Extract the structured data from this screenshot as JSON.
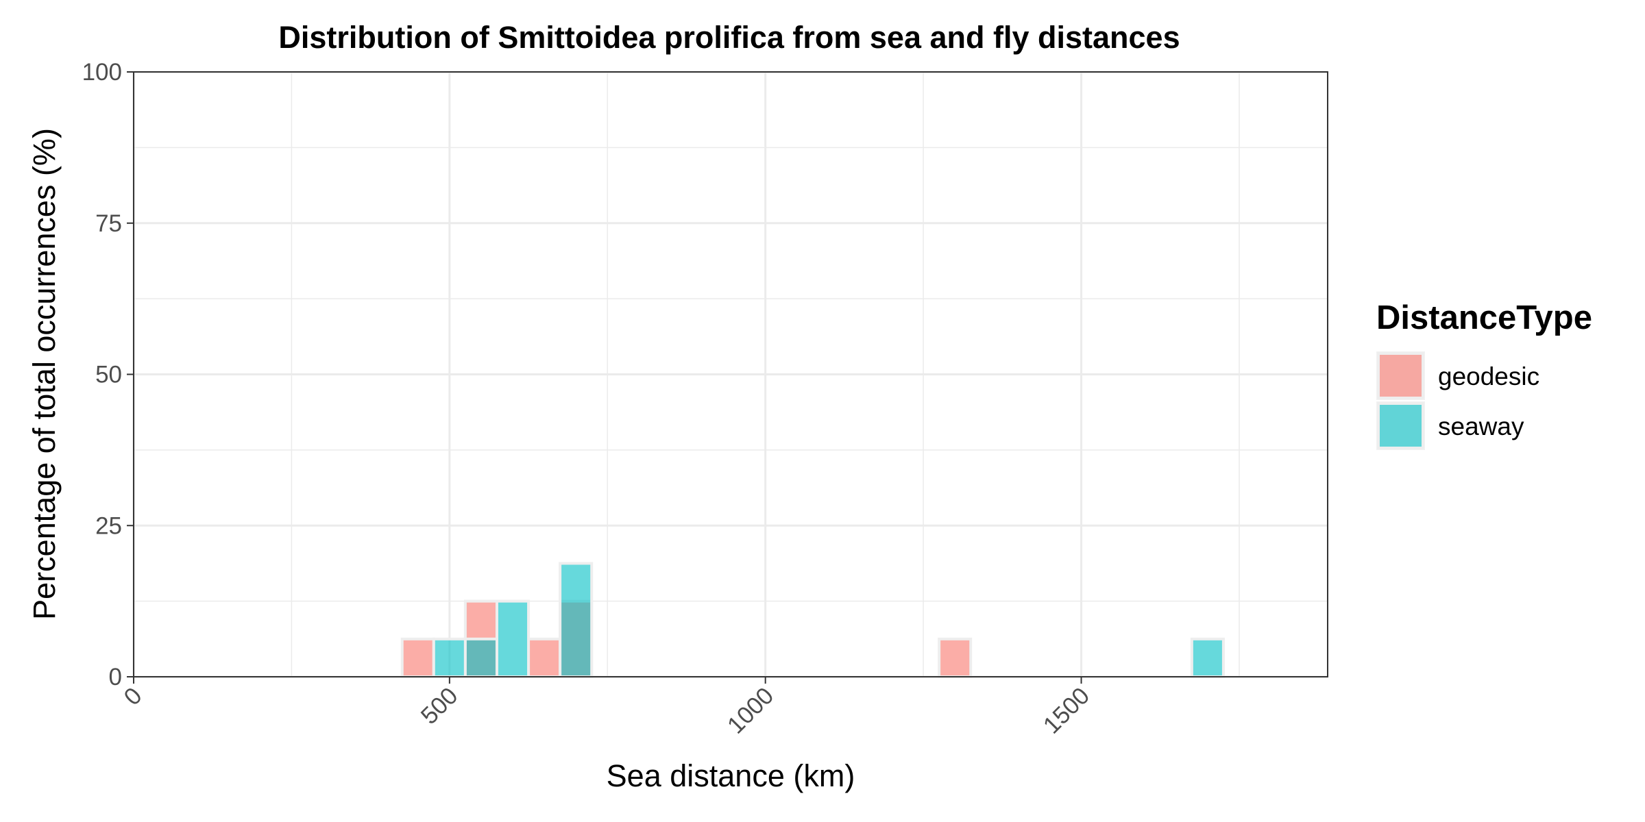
{
  "chart_data": {
    "type": "bar",
    "title": "Distribution of Smittoidea prolifica from sea and fly distances",
    "xlabel": "Sea distance (km)",
    "ylabel": "Percentage of total occurrences (%)",
    "xlim": [
      0,
      1890
    ],
    "ylim": [
      0,
      100
    ],
    "xticks": [
      0,
      500,
      1000,
      1500
    ],
    "xtick_labels": [
      "0",
      "500",
      "1000",
      "1500"
    ],
    "yticks": [
      0,
      25,
      50,
      75,
      100
    ],
    "ytick_labels": [
      "0",
      "25",
      "50",
      "75",
      "100"
    ],
    "grid": true,
    "bin_width": 50,
    "legend": {
      "title": "DistanceType",
      "position": "right",
      "entries": [
        {
          "name": "geodesic",
          "color": "#F8766D"
        },
        {
          "name": "seaway",
          "color": "#00BFC4"
        }
      ]
    },
    "series": [
      {
        "name": "geodesic",
        "color": "#F8766D",
        "bins": [
          {
            "x": 450,
            "value": 6.25
          },
          {
            "x": 550,
            "value": 12.5
          },
          {
            "x": 650,
            "value": 6.25
          },
          {
            "x": 700,
            "value": 12.5
          },
          {
            "x": 1300,
            "value": 6.25
          }
        ]
      },
      {
        "name": "seaway",
        "color": "#00BFC4",
        "bins": [
          {
            "x": 500,
            "value": 6.25
          },
          {
            "x": 550,
            "value": 6.25
          },
          {
            "x": 600,
            "value": 12.5
          },
          {
            "x": 700,
            "value": 18.75
          },
          {
            "x": 1700,
            "value": 6.25
          }
        ]
      }
    ]
  }
}
